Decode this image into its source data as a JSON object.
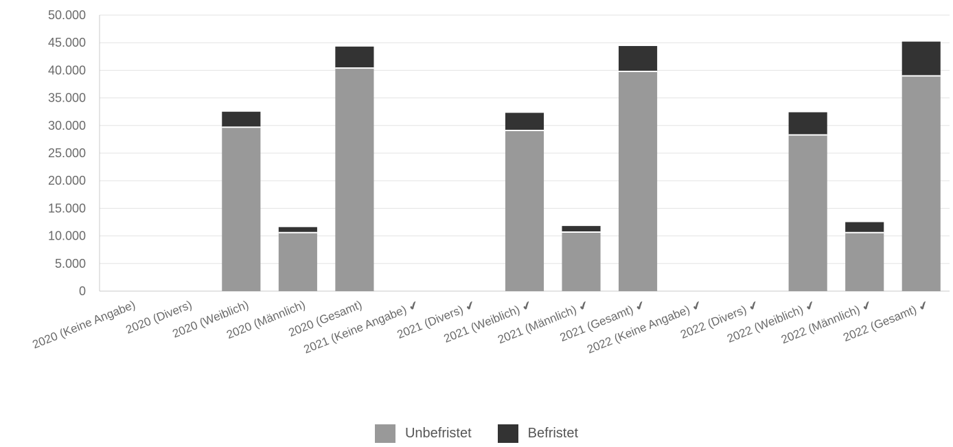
{
  "chart_data": {
    "type": "bar",
    "stacked": true,
    "categories": [
      "2020 (Keine Angabe)",
      "2020 (Divers)",
      "2020 (Weiblich)",
      "2020 (Männlich)",
      "2020 (Gesamt)",
      "2021 (Keine Angabe) ✔",
      "2021 (Divers) ✔",
      "2021 (Weiblich) ✔",
      "2021 (Männlich) ✔",
      "2021 (Gesamt) ✔",
      "2022 (Keine Angabe) ✔",
      "2022 (Divers) ✔",
      "2022 (Weiblich) ✔",
      "2022 (Männlich) ✔",
      "2022 (Gesamt) ✔"
    ],
    "series": [
      {
        "name": "Unbefristet",
        "color": "#999999",
        "values": [
          0,
          0,
          29700,
          10600,
          40400,
          0,
          0,
          29100,
          10700,
          39800,
          0,
          0,
          28300,
          10600,
          39000
        ]
      },
      {
        "name": "Befristet",
        "color": "#333333",
        "values": [
          0,
          0,
          2800,
          1000,
          3900,
          0,
          0,
          3200,
          1100,
          4600,
          0,
          0,
          4100,
          1900,
          6200
        ]
      }
    ],
    "ylim": [
      0,
      50000
    ],
    "yticks": [
      "0",
      "5.000",
      "10.000",
      "15.000",
      "20.000",
      "25.000",
      "30.000",
      "35.000",
      "40.000",
      "45.000",
      "50.000"
    ],
    "grid": true,
    "legend_position": "bottom"
  }
}
